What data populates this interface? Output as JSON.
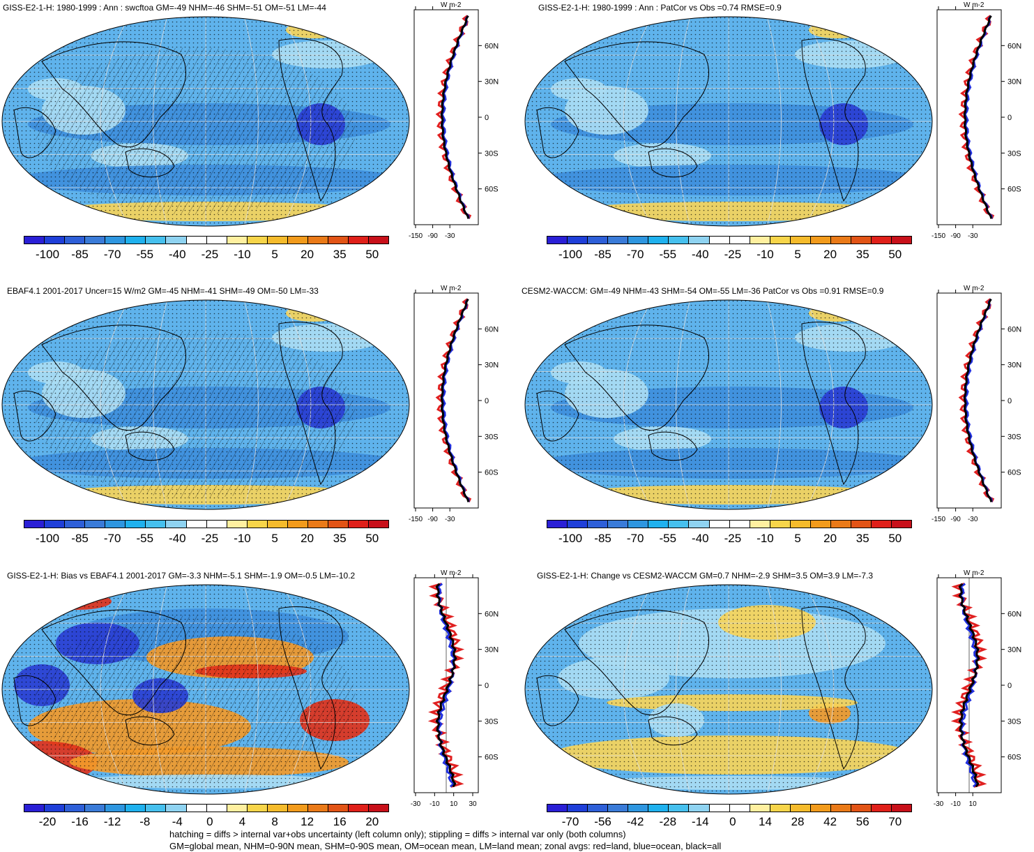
{
  "panels": [
    {
      "title": "GISS-E2-1-H: 1980-1999 : Ann : swcftoa GM=-49 NHM=-46 SHM=-51 OM=-51 LM=-44",
      "zonal_xticks": [
        "-150",
        "-90",
        "-30"
      ],
      "zonal_ylabels": [
        "60N",
        "30N",
        "0",
        "30S",
        "60S"
      ],
      "zonal_units": "W m-2",
      "colorbar_labels": [
        "-100",
        "-85",
        "-70",
        "-55",
        "-40",
        "-25",
        "-10",
        "5",
        "20",
        "35",
        "50"
      ]
    },
    {
      "title": "GISS-E2-1-H: 1980-1999 : Ann : PatCor vs Obs =0.74 RMSE=0.9",
      "zonal_xticks": [
        "-150",
        "-90",
        "-30"
      ],
      "zonal_ylabels": [
        "60N",
        "30N",
        "0",
        "30S",
        "60S"
      ],
      "zonal_units": "W m-2",
      "colorbar_labels": [
        "-100",
        "-85",
        "-70",
        "-55",
        "-40",
        "-25",
        "-10",
        "5",
        "20",
        "35",
        "50"
      ]
    },
    {
      "title": "EBAF4.1 2001-2017 Uncer=15 W/m2 GM=-45 NHM=-41 SHM=-49 OM=-50 LM=-33",
      "zonal_xticks": [
        "-150",
        "-90",
        "-30"
      ],
      "zonal_ylabels": [
        "60N",
        "30N",
        "0",
        "30S",
        "60S"
      ],
      "zonal_units": "W m-2",
      "colorbar_labels": [
        "-100",
        "-85",
        "-70",
        "-55",
        "-40",
        "-25",
        "-10",
        "5",
        "20",
        "35",
        "50"
      ]
    },
    {
      "title": "CESM2-WACCM: GM=-49 NHM=-43 SHM=-54 OM=-55 LM=-36 PatCor vs Obs =0.91 RMSE=0.9",
      "zonal_xticks": [
        "-150",
        "-90",
        "-30"
      ],
      "zonal_ylabels": [
        "60N",
        "30N",
        "0",
        "30S",
        "60S"
      ],
      "zonal_units": "W m-2",
      "colorbar_labels": [
        "-100",
        "-85",
        "-70",
        "-55",
        "-40",
        "-25",
        "-10",
        "5",
        "20",
        "35",
        "50"
      ]
    },
    {
      "title": "GISS-E2-1-H: Bias vs EBAF4.1 2001-2017 GM=-3.3 NHM=-5.1 SHM=-1.9 OM=-0.5 LM=-10.2",
      "zonal_xticks": [
        "-30",
        "-10",
        "10",
        "30"
      ],
      "zonal_ylabels": [
        "60N",
        "30N",
        "0",
        "30S",
        "60S"
      ],
      "zonal_units": "W m-2",
      "colorbar_labels": [
        "-20",
        "-16",
        "-12",
        "-8",
        "-4",
        "0",
        "4",
        "8",
        "12",
        "16",
        "20"
      ]
    },
    {
      "title": "GISS-E2-1-H: Change vs CESM2-WACCM GM=0.7 NHM=-2.9 SHM=3.5 OM=3.9 LM=-7.3",
      "zonal_xticks": [
        "-30",
        "-10",
        "10"
      ],
      "zonal_ylabels": [
        "60N",
        "30N",
        "0",
        "30S",
        "60S"
      ],
      "zonal_units": "W m-2",
      "colorbar_labels": [
        "-70",
        "-56",
        "-42",
        "-28",
        "-14",
        "0",
        "14",
        "28",
        "42",
        "56",
        "70"
      ]
    }
  ],
  "colorbar_colors": [
    "#2a1fd6",
    "#1f3fd9",
    "#2e5fd8",
    "#3a7bd8",
    "#2e96e0",
    "#1fb1ee",
    "#46c0ee",
    "#8fd3f1",
    "#ffffff",
    "#ffffff",
    "#fff0a0",
    "#f7d54a",
    "#f5bb2c",
    "#f29b1c",
    "#ea7a18",
    "#e25416",
    "#e0201a",
    "#c8101a"
  ],
  "map_colors": {
    "ocean_deep": "#3f8fdc",
    "ocean_mid": "#5fb3ec",
    "pale": "#a9dcf3",
    "yellow": "#f6d45a",
    "orange": "#f29a2a",
    "red": "#e0331c",
    "blue_dark": "#2a3fd3"
  },
  "footer": {
    "line1": "hatching = diffs > internal var+obs uncertainty (left column only); stippling = diffs > internal var only (both columns)",
    "line2": "GM=global mean, NHM=0-90N mean, SHM=0-90S mean, OM=ocean mean, LM=land mean; zonal avgs: red=land, blue=ocean, black=all"
  }
}
